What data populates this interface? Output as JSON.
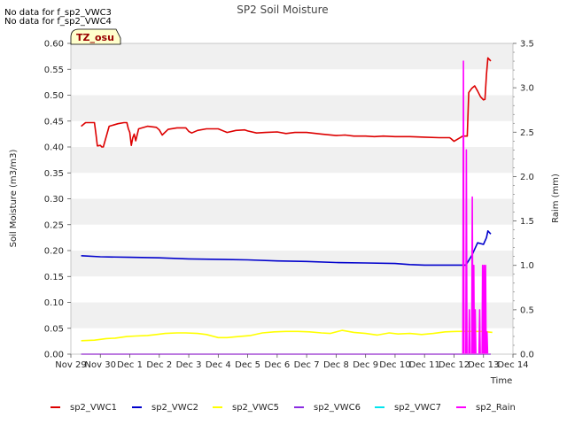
{
  "no_data_notes": [
    "No data for f_sp2_VWC3",
    "No data for f_sp2_VWC4"
  ],
  "site_badge": "TZ_osu",
  "chart_data": {
    "type": "line",
    "title": "SP2 Soil Moisture",
    "xlabel": "Time",
    "ylabel": "Soil Moisture (m3/m3)",
    "y2label": "Raim (mm)",
    "xlim": [
      0,
      15
    ],
    "ylim": [
      0,
      0.6
    ],
    "y2lim": [
      0,
      3.5
    ],
    "x_ticks": [
      {
        "x": 0,
        "label": "Nov 29"
      },
      {
        "x": 1,
        "label": "Nov 30"
      },
      {
        "x": 2,
        "label": "Dec 1"
      },
      {
        "x": 3,
        "label": "Dec 2"
      },
      {
        "x": 4,
        "label": "Dec 3"
      },
      {
        "x": 5,
        "label": "Dec 4"
      },
      {
        "x": 6,
        "label": "Dec 5"
      },
      {
        "x": 7,
        "label": "Dec 6"
      },
      {
        "x": 8,
        "label": "Dec 7"
      },
      {
        "x": 9,
        "label": "Dec 8"
      },
      {
        "x": 10,
        "label": "Dec 9"
      },
      {
        "x": 11,
        "label": "Dec 10"
      },
      {
        "x": 12,
        "label": "Dec 11"
      },
      {
        "x": 13,
        "label": "Dec 12"
      },
      {
        "x": 14,
        "label": "Dec 13"
      },
      {
        "x": 15,
        "label": "Dec 14"
      }
    ],
    "y_ticks": [
      "0.00",
      "0.05",
      "0.10",
      "0.15",
      "0.20",
      "0.25",
      "0.30",
      "0.35",
      "0.40",
      "0.45",
      "0.50",
      "0.55",
      "0.60"
    ],
    "y2_ticks": [
      "0.0",
      "0.5",
      "1.0",
      "1.5",
      "2.0",
      "2.5",
      "3.0",
      "3.5"
    ],
    "series": [
      {
        "name": "sp2_VWC1",
        "color": "#dd0000",
        "axis": "left",
        "x": [
          0.35,
          0.5,
          0.7,
          0.8,
          0.85,
          0.9,
          1.0,
          1.05,
          1.1,
          1.3,
          1.6,
          1.8,
          1.9,
          1.95,
          2.0,
          2.05,
          2.1,
          2.15,
          2.2,
          2.3,
          2.6,
          2.9,
          3.0,
          3.1,
          3.3,
          3.6,
          3.9,
          4.0,
          4.1,
          4.3,
          4.6,
          5.0,
          5.3,
          5.6,
          5.9,
          6.0,
          6.3,
          6.6,
          7.0,
          7.3,
          7.6,
          8.0,
          8.5,
          9.0,
          9.3,
          9.6,
          10.0,
          10.3,
          10.6,
          11.0,
          11.5,
          12.0,
          12.5,
          12.85,
          12.9,
          13.0,
          13.3,
          13.4,
          13.45,
          13.5,
          13.6,
          13.7,
          13.8,
          13.9,
          14.0,
          14.05,
          14.1,
          14.15,
          14.25
        ],
        "values": [
          0.44,
          0.447,
          0.447,
          0.447,
          0.425,
          0.402,
          0.403,
          0.4,
          0.4,
          0.44,
          0.445,
          0.447,
          0.447,
          0.435,
          0.428,
          0.403,
          0.418,
          0.425,
          0.412,
          0.435,
          0.44,
          0.438,
          0.433,
          0.423,
          0.434,
          0.437,
          0.437,
          0.43,
          0.427,
          0.432,
          0.435,
          0.435,
          0.428,
          0.432,
          0.433,
          0.431,
          0.427,
          0.428,
          0.429,
          0.426,
          0.428,
          0.428,
          0.425,
          0.422,
          0.423,
          0.421,
          0.421,
          0.42,
          0.421,
          0.42,
          0.42,
          0.419,
          0.418,
          0.418,
          0.416,
          0.411,
          0.421,
          0.421,
          0.421,
          0.505,
          0.513,
          0.518,
          0.508,
          0.497,
          0.491,
          0.492,
          0.54,
          0.572,
          0.566
        ]
      },
      {
        "name": "sp2_VWC2",
        "color": "#0000cc",
        "axis": "left",
        "x": [
          0.35,
          1.0,
          2.0,
          3.0,
          4.0,
          5.0,
          6.0,
          7.0,
          8.0,
          9.0,
          10.0,
          11.0,
          11.5,
          12.0,
          12.5,
          13.0,
          13.4,
          13.6,
          13.8,
          14.0,
          14.1,
          14.15,
          14.25
        ],
        "values": [
          0.19,
          0.188,
          0.187,
          0.186,
          0.184,
          0.183,
          0.182,
          0.18,
          0.179,
          0.177,
          0.176,
          0.175,
          0.173,
          0.172,
          0.172,
          0.172,
          0.172,
          0.19,
          0.215,
          0.212,
          0.225,
          0.238,
          0.232
        ]
      },
      {
        "name": "sp2_VWC5",
        "color": "#ffff00",
        "axis": "left",
        "x": [
          0.35,
          0.8,
          1.2,
          1.5,
          1.9,
          2.2,
          2.6,
          2.9,
          3.2,
          3.6,
          3.9,
          4.3,
          4.6,
          5.0,
          5.3,
          5.7,
          6.1,
          6.5,
          6.9,
          7.3,
          7.7,
          8.1,
          8.5,
          8.8,
          9.2,
          9.6,
          10.0,
          10.4,
          10.8,
          11.1,
          11.5,
          11.9,
          12.3,
          12.7,
          13.1,
          13.4,
          13.7,
          14.0,
          14.3
        ],
        "values": [
          0.026,
          0.027,
          0.03,
          0.031,
          0.034,
          0.035,
          0.036,
          0.038,
          0.04,
          0.041,
          0.041,
          0.04,
          0.038,
          0.032,
          0.032,
          0.034,
          0.036,
          0.041,
          0.043,
          0.044,
          0.044,
          0.043,
          0.041,
          0.04,
          0.046,
          0.042,
          0.04,
          0.037,
          0.041,
          0.039,
          0.04,
          0.038,
          0.04,
          0.043,
          0.044,
          0.044,
          0.044,
          0.044,
          0.042
        ]
      },
      {
        "name": "sp2_VWC6",
        "color": "#8a2be2",
        "axis": "left",
        "x": [
          0.35,
          14.25
        ],
        "values": [
          0.0,
          0.0
        ]
      },
      {
        "name": "sp2_VWC7",
        "color": "#00e5ee",
        "axis": "left",
        "x": [
          0.35,
          14.25
        ],
        "values": [
          0.0,
          0.0
        ]
      },
      {
        "name": "sp2_Rain",
        "color": "#ff00ff",
        "axis": "right",
        "x": [
          0.35,
          13.3,
          13.32,
          13.34,
          13.4,
          13.42,
          13.44,
          13.5,
          13.52,
          13.54,
          13.6,
          13.62,
          13.64,
          13.65,
          13.67,
          13.69,
          13.7,
          13.72,
          13.74,
          13.85,
          13.87,
          13.89,
          13.95,
          13.97,
          13.99,
          14.0,
          14.02,
          14.04,
          14.05,
          14.07,
          14.09,
          14.1,
          14.12,
          14.14,
          14.25
        ],
        "values": [
          0,
          0,
          3.3,
          0,
          0,
          2.3,
          0,
          0,
          0.5,
          0,
          0,
          1.77,
          0,
          0,
          1.0,
          0,
          0,
          0.5,
          0,
          0,
          0.5,
          0,
          0,
          1.0,
          0,
          0,
          1.0,
          0,
          0,
          1.0,
          0,
          0,
          0.25,
          0,
          0
        ]
      }
    ]
  }
}
